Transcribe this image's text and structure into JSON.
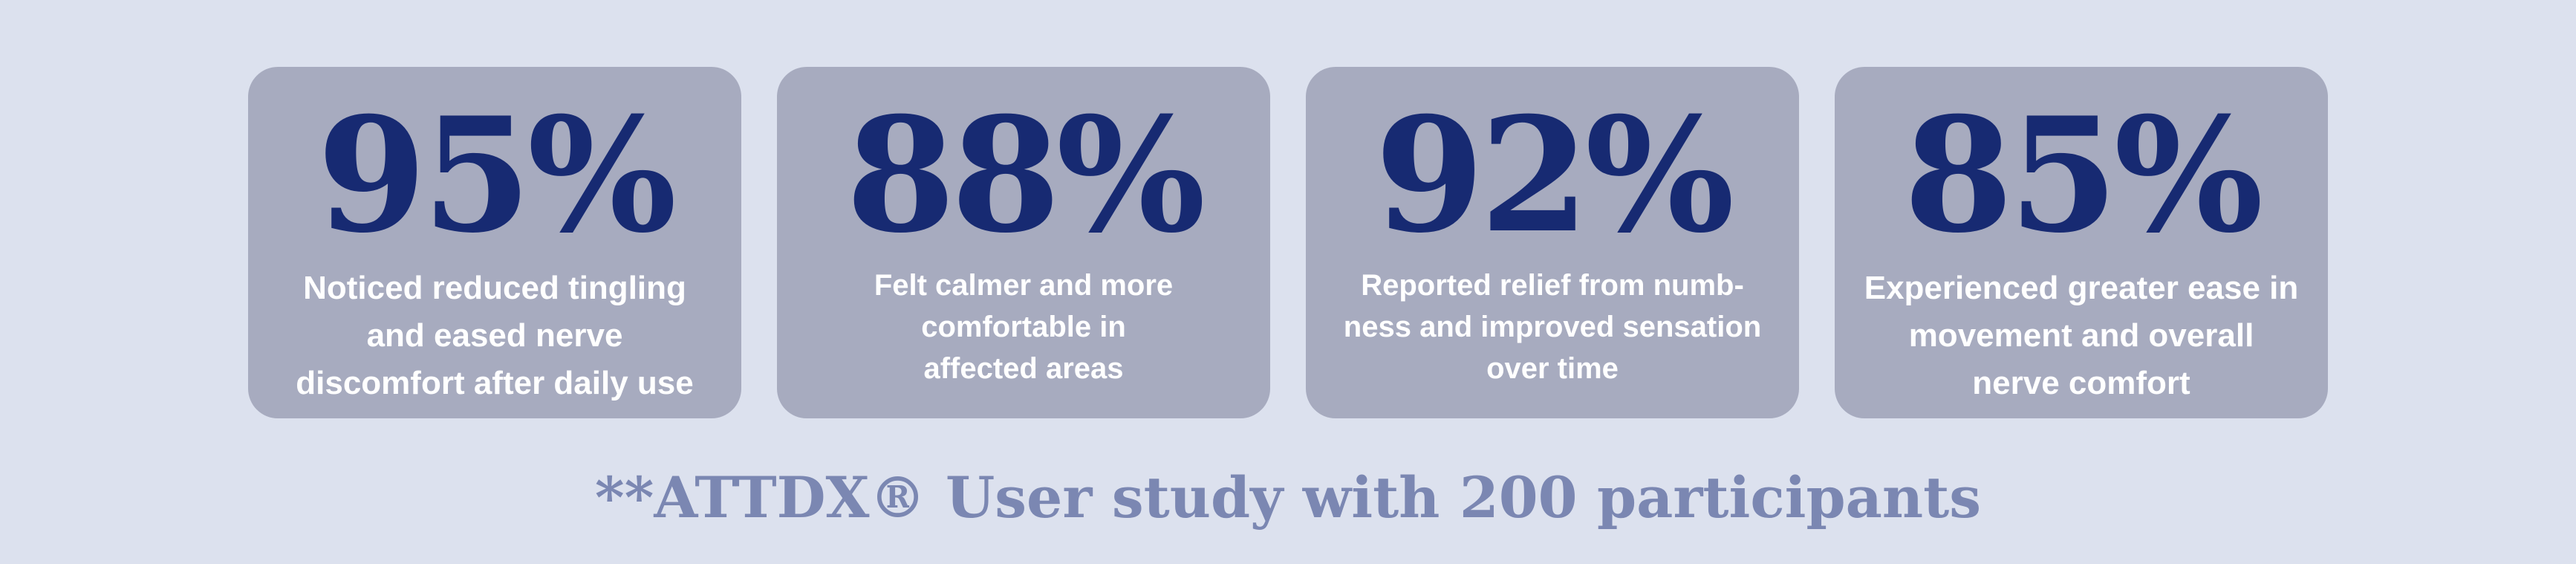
{
  "stats": [
    {
      "percent": "95%",
      "description": "Noticed reduced tingling\nand eased nerve\ndiscomfort after daily use"
    },
    {
      "percent": "88%",
      "description": "Felt calmer and more\ncomfortable in\naffected areas"
    },
    {
      "percent": "92%",
      "description": "Reported relief from numb-\nness and improved sensation\nover time"
    },
    {
      "percent": "85%",
      "description": "Experienced greater ease in\nmovement and overall\nnerve comfort"
    }
  ],
  "footnote": "**ATTDX® User study with 200 participants",
  "colors": {
    "background": "#dce1ee",
    "card": "#a7abbf",
    "percent_text": "#172a72",
    "description_text": "#ffffff",
    "footnote_text": "#7b87b2"
  }
}
